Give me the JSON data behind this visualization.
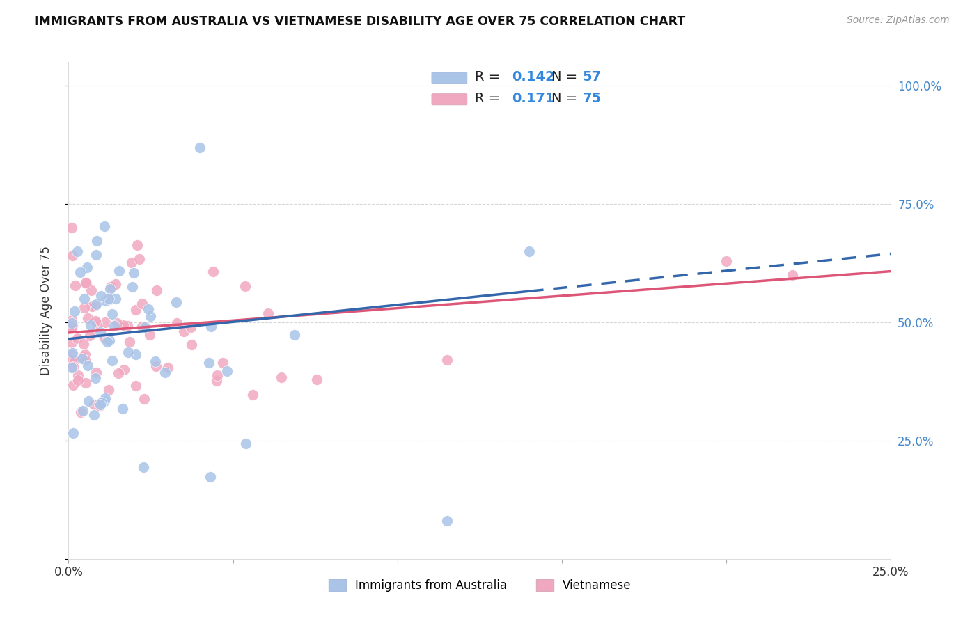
{
  "title": "IMMIGRANTS FROM AUSTRALIA VS VIETNAMESE DISABILITY AGE OVER 75 CORRELATION CHART",
  "source": "Source: ZipAtlas.com",
  "ylabel": "Disability Age Over 75",
  "xlim": [
    0.0,
    0.25
  ],
  "ylim": [
    0.0,
    1.05
  ],
  "australia_R": 0.142,
  "australia_N": 57,
  "vietnamese_R": 0.171,
  "vietnamese_N": 75,
  "australia_color": "#aac4e8",
  "vietnamese_color": "#f0a8c0",
  "australia_line_color": "#3366aa",
  "vietnamese_line_color": "#dd5577",
  "background_color": "#ffffff",
  "grid_color": "#cccccc",
  "legend_label_australia": "Immigrants from Australia",
  "legend_label_vietnamese": "Vietnamese",
  "aus_intercept": 0.465,
  "aus_slope": 0.72,
  "viet_intercept": 0.478,
  "viet_slope": 0.52
}
